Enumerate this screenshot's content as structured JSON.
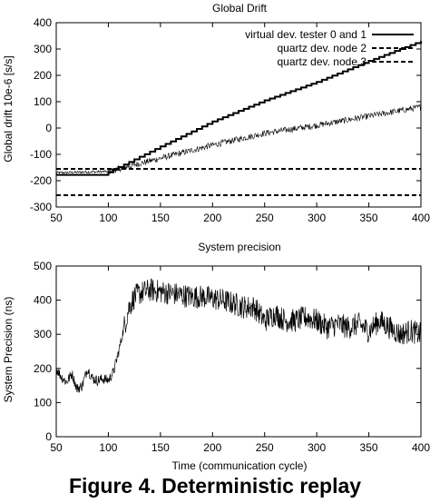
{
  "caption": "Figure 4. Deterministic replay",
  "chart_data": [
    {
      "type": "line",
      "title": "Global Drift",
      "xlabel": "",
      "ylabel": "Global drift 10e-6 [s/s]",
      "xlim": [
        50,
        400
      ],
      "ylim": [
        -300,
        400
      ],
      "xticks": [
        "50",
        "100",
        "150",
        "200",
        "250",
        "300",
        "350",
        "400"
      ],
      "yticks": [
        "-300",
        "-200",
        "-100",
        "0",
        "100",
        "200",
        "300",
        "400"
      ],
      "grid": false,
      "legend_position": "top-right",
      "series": [
        {
          "name": "virtual dev. tester 0 and 1",
          "style": "solid-step",
          "x": [
            50,
            95,
            100,
            150,
            200,
            250,
            300,
            350,
            400
          ],
          "y": [
            -178,
            -178,
            -168,
            -70,
            25,
            105,
            175,
            255,
            330
          ]
        },
        {
          "name": "virtual dev. tester 0 and 1",
          "style": "noisy-band",
          "x": [
            50,
            100,
            150,
            200,
            250,
            300,
            350,
            400
          ],
          "y": [
            -170,
            -165,
            -115,
            -65,
            -20,
            10,
            45,
            80
          ],
          "noise_amplitude": 12
        },
        {
          "name": "quartz dev. node 2",
          "style": "dashed",
          "x": [
            50,
            400
          ],
          "y": [
            -155,
            -155
          ]
        },
        {
          "name": "quartz dev. node 3",
          "style": "dashed",
          "x": [
            50,
            400
          ],
          "y": [
            -255,
            -255
          ]
        }
      ]
    },
    {
      "type": "line",
      "title": "System precision",
      "xlabel": "Time (communication cycle)",
      "ylabel": "System Precision (ns)",
      "xlim": [
        50,
        400
      ],
      "ylim": [
        0,
        500
      ],
      "xticks": [
        "50",
        "100",
        "150",
        "200",
        "250",
        "300",
        "350",
        "400"
      ],
      "yticks": [
        "0",
        "100",
        "200",
        "300",
        "400",
        "500"
      ],
      "grid": false,
      "series": [
        {
          "x": [
            50,
            55,
            60,
            65,
            70,
            75,
            80,
            85,
            90,
            95,
            100,
            105,
            110,
            115,
            120,
            125,
            130,
            140,
            150,
            160,
            170,
            180,
            190,
            200,
            210,
            220,
            230,
            240,
            250,
            260,
            270,
            280,
            290,
            300,
            310,
            320,
            330,
            340,
            350,
            360,
            370,
            380,
            390,
            400
          ],
          "y": [
            200,
            175,
            160,
            185,
            140,
            150,
            200,
            170,
            165,
            170,
            165,
            190,
            250,
            320,
            380,
            410,
            420,
            430,
            425,
            420,
            415,
            410,
            410,
            405,
            400,
            390,
            380,
            380,
            340,
            360,
            340,
            340,
            350,
            340,
            320,
            330,
            320,
            330,
            310,
            340,
            320,
            300,
            310,
            300
          ],
          "noise_amplitude": 35
        }
      ]
    }
  ]
}
